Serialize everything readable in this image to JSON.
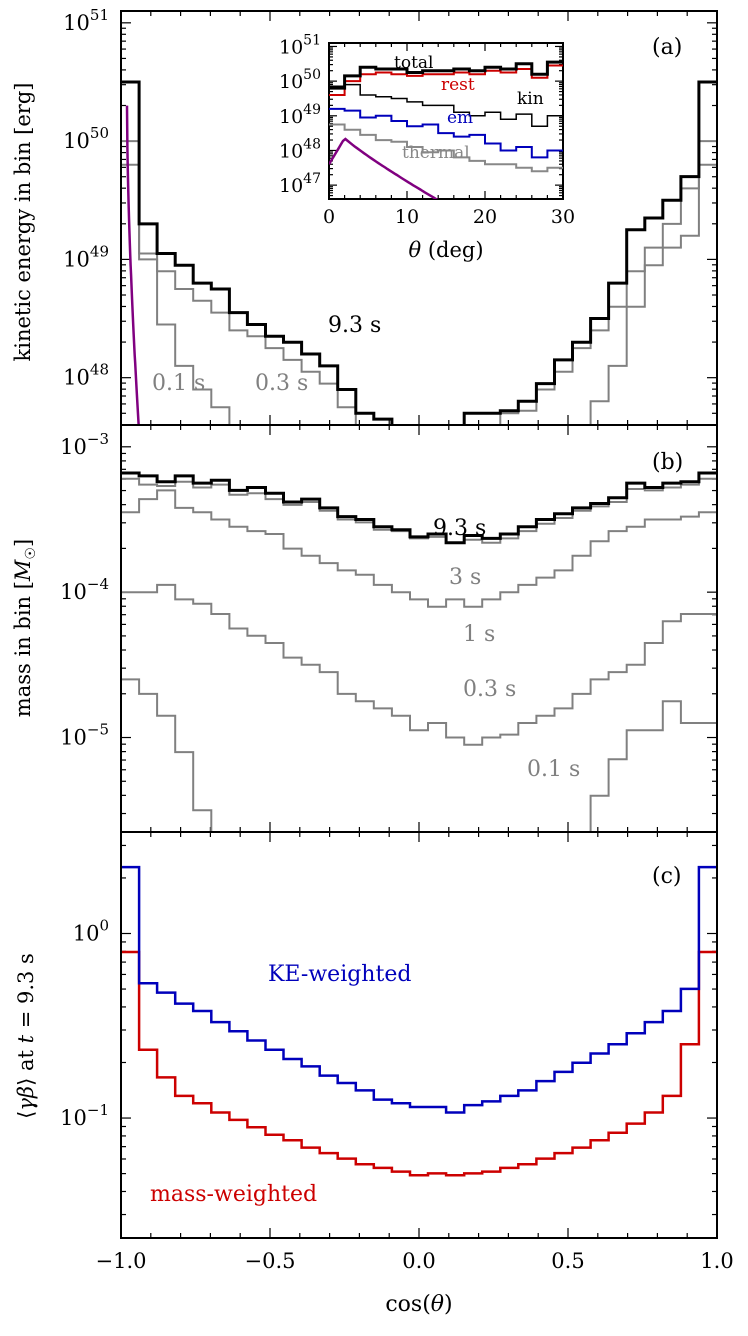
{
  "chart_data": [
    {
      "type": "line",
      "panel_label": "(a)",
      "ylabel": "kinetic energy in bin [erg]",
      "xlim": [
        -1.0,
        1.0
      ],
      "ylim_log10": [
        47.6,
        51.1
      ],
      "yscale": "log",
      "yticks": [
        {
          "value": 48,
          "base": "10",
          "exp": "48"
        },
        {
          "value": 49,
          "base": "10",
          "exp": "49"
        },
        {
          "value": 50,
          "base": "10",
          "exp": "50"
        },
        {
          "value": 51,
          "base": "10",
          "exp": "51"
        }
      ],
      "series": [
        {
          "label": "9.3 s",
          "color": "#000000",
          "width": 3,
          "log10_values": [
            50.5,
            49.3,
            49.05,
            48.95,
            48.8,
            48.75,
            48.55,
            48.45,
            48.35,
            48.3,
            48.2,
            48.1,
            47.9,
            47.7,
            47.65,
            47.55,
            47.55,
            47.5,
            47.55,
            47.7,
            47.7,
            47.72,
            47.8,
            47.95,
            48.15,
            48.3,
            48.5,
            48.8,
            49.25,
            49.35,
            49.5,
            49.7,
            50.5
          ]
        },
        {
          "label": "0.3 s",
          "color": "#808080",
          "width": 2,
          "log10_values": [
            50.0,
            49.05,
            48.9,
            48.75,
            48.65,
            48.55,
            48.4,
            48.35,
            48.25,
            48.15,
            48.05,
            47.95,
            47.75,
            47.6,
            47.4,
            47.3,
            47.2,
            47.2,
            47.3,
            47.45,
            47.6,
            47.7,
            47.72,
            47.9,
            48.05,
            48.25,
            48.4,
            48.6,
            48.9,
            49.1,
            49.3,
            49.6,
            50.0
          ]
        },
        {
          "label": "0.1 s",
          "color": "#808080",
          "width": 2,
          "log10_values": [
            49.8,
            49.0,
            48.45,
            48.1,
            47.9,
            47.75,
            47.5,
            47.3,
            47.0,
            46.8,
            46.5,
            46.3,
            46.0,
            46.0,
            46.0,
            46.0,
            46.0,
            46.0,
            46.0,
            46.0,
            46.0,
            46.0,
            46.0,
            46.0,
            47.0,
            47.5,
            47.8,
            48.1,
            48.6,
            48.95,
            49.1,
            49.2,
            49.8
          ]
        }
      ],
      "purple_curve": {
        "color": "#800080"
      },
      "annotations": [
        {
          "text": "9.3 s",
          "color": "#000000"
        },
        {
          "text": "0.1 s",
          "color": "#808080"
        },
        {
          "text": "0.3 s",
          "color": "#808080"
        }
      ],
      "inset": {
        "xlabel_math": "θ",
        "xlabel_rest": " (deg)",
        "xlim": [
          0,
          30
        ],
        "xticks": [
          "0",
          "10",
          "20",
          "30"
        ],
        "ylim_log10": [
          46.6,
          51.1
        ],
        "yticks": [
          {
            "value": 47,
            "base": "10",
            "exp": "47"
          },
          {
            "value": 48,
            "base": "10",
            "exp": "48"
          },
          {
            "value": 49,
            "base": "10",
            "exp": "49"
          },
          {
            "value": 50,
            "base": "10",
            "exp": "50"
          },
          {
            "value": 51,
            "base": "10",
            "exp": "51"
          }
        ],
        "bin_edges_deg": [
          0,
          2,
          4,
          6,
          8,
          10,
          12,
          14,
          16,
          18,
          20,
          22,
          24,
          26,
          28,
          30
        ],
        "series": [
          {
            "label": "total",
            "color": "#000000",
            "width": 3,
            "log10_values": [
              49.8,
              50.15,
              50.4,
              50.35,
              50.35,
              50.25,
              50.3,
              50.3,
              50.35,
              50.3,
              50.4,
              50.35,
              50.5,
              50.2,
              50.55
            ]
          },
          {
            "label": "rest",
            "color": "#cc0000",
            "width": 2,
            "log10_values": [
              49.6,
              50.0,
              50.2,
              50.25,
              50.2,
              50.15,
              50.2,
              50.2,
              50.25,
              50.2,
              50.3,
              50.25,
              50.35,
              50.1,
              50.45
            ]
          },
          {
            "label": "kin",
            "color": "#000000",
            "width": 1.5,
            "log10_values": [
              49.85,
              49.9,
              49.6,
              49.55,
              49.5,
              49.4,
              49.3,
              49.3,
              49.1,
              49.0,
              49.1,
              48.9,
              49.05,
              48.7,
              49.0
            ]
          },
          {
            "label": "em",
            "color": "#0000bb",
            "width": 2,
            "log10_values": [
              49.2,
              49.15,
              48.95,
              49.0,
              48.85,
              48.7,
              48.75,
              48.5,
              48.4,
              48.45,
              48.2,
              48.0,
              48.1,
              47.8,
              48.0
            ]
          },
          {
            "label": "thermal",
            "color": "#888888",
            "width": 2,
            "log10_values": [
              48.75,
              48.6,
              48.45,
              48.3,
              48.25,
              48.1,
              47.95,
              48.0,
              47.8,
              47.7,
              47.6,
              47.6,
              47.5,
              47.4,
              47.5
            ]
          }
        ],
        "labels": [
          {
            "text": "total",
            "color": "#000000"
          },
          {
            "text": "rest",
            "color": "#cc0000"
          },
          {
            "text": "kin",
            "color": "#000000"
          },
          {
            "text": "em",
            "color": "#0000bb"
          },
          {
            "text": "thermal",
            "color": "#888888"
          }
        ]
      }
    },
    {
      "type": "line",
      "panel_label": "(b)",
      "ylabel_prefix": "mass in bin [",
      "ylabel_math": "M",
      "ylabel_sub": "☉",
      "ylabel_suffix": "]",
      "xlim": [
        -1.0,
        1.0
      ],
      "ylim_log10": [
        -5.65,
        -2.85
      ],
      "yscale": "log",
      "yticks": [
        {
          "value": -5,
          "base": "10",
          "exp": "−5"
        },
        {
          "value": -4,
          "base": "10",
          "exp": "−4"
        },
        {
          "value": -3,
          "base": "10",
          "exp": "−3"
        }
      ],
      "series": [
        {
          "label": "9.3 s",
          "color": "#000000",
          "width": 3,
          "log10_values": [
            -3.18,
            -3.2,
            -3.24,
            -3.2,
            -3.25,
            -3.23,
            -3.3,
            -3.28,
            -3.32,
            -3.38,
            -3.36,
            -3.42,
            -3.48,
            -3.5,
            -3.55,
            -3.57,
            -3.62,
            -3.6,
            -3.66,
            -3.61,
            -3.63,
            -3.6,
            -3.55,
            -3.5,
            -3.46,
            -3.42,
            -3.39,
            -3.35,
            -3.25,
            -3.28,
            -3.25,
            -3.24,
            -3.18
          ]
        },
        {
          "label": "3 s",
          "color": "#808080",
          "width": 2,
          "log10_values": [
            -3.22,
            -3.26,
            -3.27,
            -3.24,
            -3.28,
            -3.26,
            -3.33,
            -3.32,
            -3.36,
            -3.4,
            -3.38,
            -3.44,
            -3.5,
            -3.52,
            -3.57,
            -3.58,
            -3.63,
            -3.62,
            -3.66,
            -3.64,
            -3.66,
            -3.63,
            -3.58,
            -3.53,
            -3.49,
            -3.44,
            -3.41,
            -3.38,
            -3.29,
            -3.3,
            -3.28,
            -3.26,
            -3.22
          ]
        },
        {
          "label": "1 s",
          "color": "#808080",
          "width": 2,
          "log10_values": [
            -3.45,
            -3.36,
            -3.3,
            -3.42,
            -3.45,
            -3.5,
            -3.55,
            -3.58,
            -3.6,
            -3.7,
            -3.75,
            -3.8,
            -3.85,
            -3.88,
            -3.95,
            -4.0,
            -4.05,
            -4.1,
            -4.05,
            -4.1,
            -4.05,
            -4.0,
            -3.95,
            -3.9,
            -3.85,
            -3.75,
            -3.65,
            -3.58,
            -3.55,
            -3.5,
            -3.5,
            -3.48,
            -3.45
          ]
        },
        {
          "label": "0.3 s",
          "color": "#808080",
          "width": 2,
          "log10_values": [
            -4.0,
            -4.0,
            -3.95,
            -4.05,
            -4.08,
            -4.15,
            -4.25,
            -4.3,
            -4.35,
            -4.45,
            -4.5,
            -4.55,
            -4.7,
            -4.75,
            -4.8,
            -4.85,
            -4.95,
            -4.9,
            -5.0,
            -5.05,
            -5.0,
            -4.98,
            -4.9,
            -4.85,
            -4.8,
            -4.7,
            -4.6,
            -4.55,
            -4.5,
            -4.35,
            -4.2,
            -4.15,
            -4.15
          ]
        },
        {
          "label": "0.1 s",
          "color": "#808080",
          "width": 2,
          "log10_values": [
            -4.6,
            -4.7,
            -4.85,
            -5.1,
            -5.5,
            -5.9,
            -6.2,
            -6.5,
            -6.8,
            -7.0,
            -7.0,
            -7.0,
            -7.0,
            -7.0,
            -7.0,
            -7.0,
            -7.0,
            -7.0,
            -7.0,
            -7.0,
            -7.0,
            -7.0,
            -7.0,
            -7.0,
            -6.5,
            -5.7,
            -5.4,
            -5.15,
            -4.95,
            -4.95,
            -4.75,
            -4.9,
            -4.9
          ]
        }
      ],
      "annotations": [
        {
          "text": "9.3 s",
          "color": "#000000"
        },
        {
          "text": "3 s",
          "color": "#808080"
        },
        {
          "text": "1 s",
          "color": "#808080"
        },
        {
          "text": "0.3 s",
          "color": "#808080"
        },
        {
          "text": "0.1 s",
          "color": "#808080"
        }
      ]
    },
    {
      "type": "line",
      "panel_label": "(c)",
      "ylabel_parts": [
        "⟨",
        "γβ",
        "⟩ at ",
        "t",
        " = 9.3 s"
      ],
      "xlabel_parts": [
        "cos(",
        "θ",
        ")"
      ],
      "xlim": [
        -1.0,
        1.0
      ],
      "ylim_log10": [
        -1.65,
        0.55
      ],
      "yscale": "log",
      "xticks": [
        "−1.0",
        "−0.5",
        "0.0",
        "0.5",
        "1.0"
      ],
      "yticks": [
        {
          "value": -1,
          "base": "10",
          "exp": "−1"
        },
        {
          "value": 0,
          "base": "10",
          "exp": "0"
        }
      ],
      "series": [
        {
          "label": "KE-weighted",
          "color": "#0000bb",
          "width": 2.5,
          "log10_values": [
            0.36,
            -0.27,
            -0.32,
            -0.38,
            -0.42,
            -0.48,
            -0.53,
            -0.58,
            -0.63,
            -0.68,
            -0.72,
            -0.77,
            -0.81,
            -0.85,
            -0.9,
            -0.92,
            -0.94,
            -0.94,
            -0.97,
            -0.93,
            -0.91,
            -0.88,
            -0.85,
            -0.8,
            -0.75,
            -0.7,
            -0.65,
            -0.6,
            -0.54,
            -0.48,
            -0.42,
            -0.3,
            0.36
          ]
        },
        {
          "label": "mass-weighted",
          "color": "#cc0000",
          "width": 2.5,
          "log10_values": [
            -0.1,
            -0.63,
            -0.78,
            -0.88,
            -0.92,
            -0.97,
            -1.01,
            -1.05,
            -1.09,
            -1.12,
            -1.16,
            -1.19,
            -1.22,
            -1.25,
            -1.27,
            -1.29,
            -1.31,
            -1.3,
            -1.31,
            -1.3,
            -1.29,
            -1.27,
            -1.25,
            -1.22,
            -1.19,
            -1.16,
            -1.12,
            -1.08,
            -1.03,
            -0.97,
            -0.88,
            -0.6,
            -0.1
          ]
        }
      ],
      "annotations": [
        {
          "text": "KE-weighted",
          "color": "#0000bb"
        },
        {
          "text": "mass-weighted",
          "color": "#cc0000"
        }
      ]
    }
  ]
}
